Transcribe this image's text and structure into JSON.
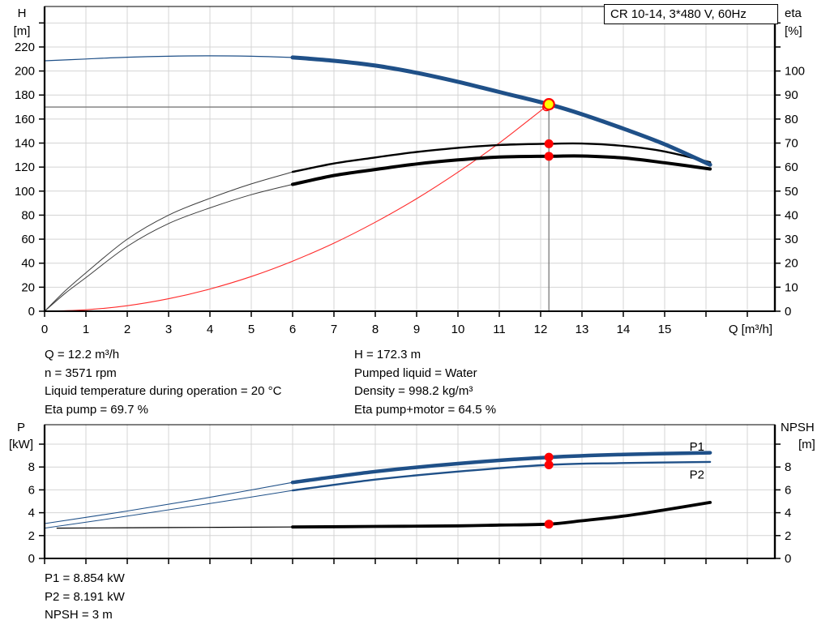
{
  "title_box": "CR 10-14, 3*480 V, 60Hz",
  "info_panel": {
    "left": [
      "Q = 12.2 m³/h",
      "n = 3571 rpm",
      "Liquid temperature during operation = 20 °C",
      "Eta pump = 69.7 %"
    ],
    "right": [
      "H = 172.3 m",
      "Pumped liquid = Water",
      "Density = 998.2 kg/m³",
      "Eta pump+motor = 64.5 %"
    ]
  },
  "footer_panel": {
    "lines": [
      "P1 = 8.854 kW",
      "P2 = 8.191 kW",
      "NPSH = 3 m"
    ]
  },
  "colors": {
    "curve_blue": "#1f5088",
    "curve_black": "#000000",
    "curve_red": "#ff2a2a",
    "marker_red": "#ff0000",
    "marker_yellow": "#ffff00",
    "label_blue": "#2a66a5",
    "grid": "#d4d4d4",
    "ref_line": "#7a7a7a"
  },
  "chart_data": [
    {
      "id": "head",
      "type": "line",
      "title": "Pump head / efficiency vs flow",
      "x_axis": {
        "label": "Q [m³/h]",
        "min": 0,
        "max": 17.7,
        "tick_labels": [
          "0",
          "1",
          "2",
          "3",
          "4",
          "5",
          "6",
          "7",
          "8",
          "9",
          "10",
          "11",
          "12",
          "13",
          "14",
          "15"
        ]
      },
      "y_left": {
        "header": [
          "H",
          "[m]"
        ],
        "min": 0,
        "max": 220,
        "step": 20,
        "tick_labels": [
          "0",
          "20",
          "40",
          "60",
          "80",
          "100",
          "120",
          "140",
          "160",
          "180",
          "200",
          "220"
        ]
      },
      "y_right": {
        "header": [
          "eta",
          "[%]"
        ],
        "min": 0,
        "max": 100,
        "step": 10,
        "tick_labels": [
          "0",
          "10",
          "20",
          "30",
          "40",
          "50",
          "60",
          "70",
          "80",
          "90",
          "100"
        ]
      },
      "series": [
        {
          "name": "system-curve",
          "axis": "left",
          "color": "#ff2a2a",
          "width": 1.1,
          "points": [
            [
              0,
              0
            ],
            [
              1,
              1.2
            ],
            [
              2,
              4.6
            ],
            [
              3,
              10.4
            ],
            [
              4,
              18.5
            ],
            [
              5,
              28.9
            ],
            [
              6,
              41.7
            ],
            [
              7,
              56.7
            ],
            [
              8,
              74.1
            ],
            [
              9,
              93.7
            ],
            [
              10,
              115.8
            ],
            [
              11,
              140.1
            ],
            [
              12.2,
              172.3
            ]
          ]
        },
        {
          "name": "pump-curve-preview",
          "axis": "left",
          "color": "#1f5088",
          "width": 1.2,
          "points": [
            [
              0,
              208.5
            ],
            [
              1,
              210.0
            ],
            [
              2,
              211.5
            ],
            [
              3,
              212.3
            ],
            [
              4,
              212.6
            ],
            [
              5,
              212.3
            ],
            [
              6,
              211.3
            ]
          ]
        },
        {
          "name": "eta-pump-preview",
          "axis": "right",
          "color": "#3c3c3c",
          "width": 1,
          "points": [
            [
              0,
              0
            ],
            [
              0.5,
              8.5
            ],
            [
              1,
              16
            ],
            [
              2,
              30
            ],
            [
              3,
              40
            ],
            [
              4,
              47
            ],
            [
              5,
              53
            ],
            [
              6,
              58
            ]
          ]
        },
        {
          "name": "eta-total-preview",
          "axis": "right",
          "color": "#3c3c3c",
          "width": 1,
          "points": [
            [
              0,
              0
            ],
            [
              0.5,
              7.5
            ],
            [
              1,
              14
            ],
            [
              2,
              27
            ],
            [
              3,
              36.5
            ],
            [
              4,
              43
            ],
            [
              5,
              48.5
            ],
            [
              6,
              52.8
            ]
          ]
        },
        {
          "name": "eta-pump-curve",
          "axis": "right",
          "color": "#000000",
          "width": 2.4,
          "points": [
            [
              6,
              58
            ],
            [
              7,
              61.5
            ],
            [
              8,
              64
            ],
            [
              9,
              66.3
            ],
            [
              10,
              68
            ],
            [
              11,
              69.2
            ],
            [
              12.2,
              69.7
            ],
            [
              13,
              69.8
            ],
            [
              14,
              68.8
            ],
            [
              15,
              66.5
            ],
            [
              16.1,
              62
            ]
          ]
        },
        {
          "name": "eta-total-curve",
          "axis": "right",
          "color": "#000000",
          "width": 4,
          "points": [
            [
              6,
              52.8
            ],
            [
              7,
              56.5
            ],
            [
              8,
              59
            ],
            [
              9,
              61.3
            ],
            [
              10,
              63
            ],
            [
              11,
              64.2
            ],
            [
              12.2,
              64.5
            ],
            [
              13,
              64.6
            ],
            [
              14,
              63.8
            ],
            [
              15,
              61.8
            ],
            [
              16.1,
              59.2
            ]
          ]
        },
        {
          "name": "pump-curve",
          "axis": "left",
          "color": "#1f5088",
          "width": 5,
          "points": [
            [
              6,
              211.3
            ],
            [
              7,
              208.5
            ],
            [
              8,
              204.5
            ],
            [
              9,
              198.5
            ],
            [
              10,
              191
            ],
            [
              11,
              182.5
            ],
            [
              12.2,
              172.3
            ],
            [
              13,
              164
            ],
            [
              14,
              152
            ],
            [
              15,
              139
            ],
            [
              16.1,
              122
            ]
          ]
        }
      ],
      "ref_lines": [
        {
          "name": "head-ref-line",
          "type": "h",
          "value": 170,
          "axis": "left",
          "from_q": 0,
          "to_q": 12.2
        },
        {
          "name": "flow-ref-line",
          "type": "v",
          "q": 12.2,
          "from_value": 170,
          "to_value": 0,
          "axis": "left"
        }
      ],
      "markers": [
        {
          "name": "requested-duty-marker",
          "q": 12.14,
          "value": 170,
          "axis": "left",
          "style": "ring",
          "color": "#ff0000"
        },
        {
          "name": "duty-point-marker",
          "q": 12.2,
          "value": 172.3,
          "axis": "left",
          "style": "dot-ring",
          "fill": "#ffff00",
          "ring": "#ff0000"
        },
        {
          "name": "eta-pump-point",
          "q": 12.2,
          "value": 69.7,
          "axis": "right",
          "style": "dot",
          "color": "#ff0000"
        },
        {
          "name": "eta-total-point",
          "q": 12.2,
          "value": 64.5,
          "axis": "right",
          "style": "dot",
          "color": "#ff0000"
        }
      ],
      "annotations": []
    },
    {
      "id": "power",
      "type": "line",
      "title": "Power / NPSH vs flow",
      "x_axis": {
        "label": "",
        "min": 0,
        "max": 17.7,
        "tick_labels": []
      },
      "y_left": {
        "header": [
          "P",
          "[kW]"
        ],
        "min": 0,
        "max": 10,
        "step": 2,
        "tick_labels": [
          "0",
          "2",
          "4",
          "6",
          "8"
        ]
      },
      "y_right": {
        "header": [
          "NPSH",
          "[m]"
        ],
        "min": 0,
        "max": 10,
        "step": 2,
        "tick_labels": [
          "0",
          "2",
          "4",
          "6",
          "8"
        ]
      },
      "series": [
        {
          "name": "p1-preview",
          "axis": "left",
          "color": "#1f5088",
          "width": 1.1,
          "points": [
            [
              0,
              3.05
            ],
            [
              2,
              4.15
            ],
            [
              4,
              5.35
            ],
            [
              6,
              6.65
            ]
          ]
        },
        {
          "name": "p2-preview",
          "axis": "left",
          "color": "#1f5088",
          "width": 1,
          "points": [
            [
              0,
              2.65
            ],
            [
              2,
              3.7
            ],
            [
              4,
              4.8
            ],
            [
              6,
              5.95
            ]
          ]
        },
        {
          "name": "npsh-preview",
          "axis": "right",
          "color": "#000000",
          "width": 1.2,
          "points": [
            [
              0.3,
              2.65
            ],
            [
              3,
              2.7
            ],
            [
              6,
              2.75
            ]
          ]
        },
        {
          "name": "npsh-curve",
          "axis": "right",
          "color": "#000000",
          "width": 3.8,
          "points": [
            [
              6,
              2.75
            ],
            [
              8,
              2.8
            ],
            [
              10,
              2.85
            ],
            [
              11,
              2.92
            ],
            [
              12.2,
              3.0
            ],
            [
              13,
              3.3
            ],
            [
              14,
              3.7
            ],
            [
              15,
              4.25
            ],
            [
              16.1,
              4.9
            ]
          ]
        },
        {
          "name": "p2-curve",
          "axis": "left",
          "color": "#1f5088",
          "width": 2.4,
          "points": [
            [
              6,
              5.95
            ],
            [
              8,
              6.9
            ],
            [
              10,
              7.6
            ],
            [
              12.2,
              8.191
            ],
            [
              14,
              8.35
            ],
            [
              16.1,
              8.45
            ]
          ]
        },
        {
          "name": "p1-curve",
          "axis": "left",
          "color": "#1f5088",
          "width": 4.5,
          "points": [
            [
              6,
              6.65
            ],
            [
              8,
              7.6
            ],
            [
              10,
              8.3
            ],
            [
              12.2,
              8.854
            ],
            [
              14,
              9.1
            ],
            [
              16.1,
              9.25
            ]
          ]
        }
      ],
      "ref_lines": [],
      "markers": [
        {
          "name": "p1-point",
          "q": 12.2,
          "value": 8.854,
          "axis": "left",
          "style": "dot",
          "color": "#ff0000"
        },
        {
          "name": "p2-point",
          "q": 12.2,
          "value": 8.191,
          "axis": "left",
          "style": "dot",
          "color": "#ff0000"
        },
        {
          "name": "npsh-point",
          "q": 12.2,
          "value": 3.0,
          "axis": "right",
          "style": "dot",
          "color": "#ff0000"
        }
      ],
      "annotations": [
        {
          "name": "p1-label",
          "text": "P1",
          "q": 15.6,
          "value": 9.45,
          "axis": "left",
          "color": "#2a66a5"
        },
        {
          "name": "p2-label",
          "text": "P2",
          "q": 15.6,
          "value": 7.0,
          "axis": "left",
          "color": "#2a66a5"
        }
      ]
    }
  ]
}
